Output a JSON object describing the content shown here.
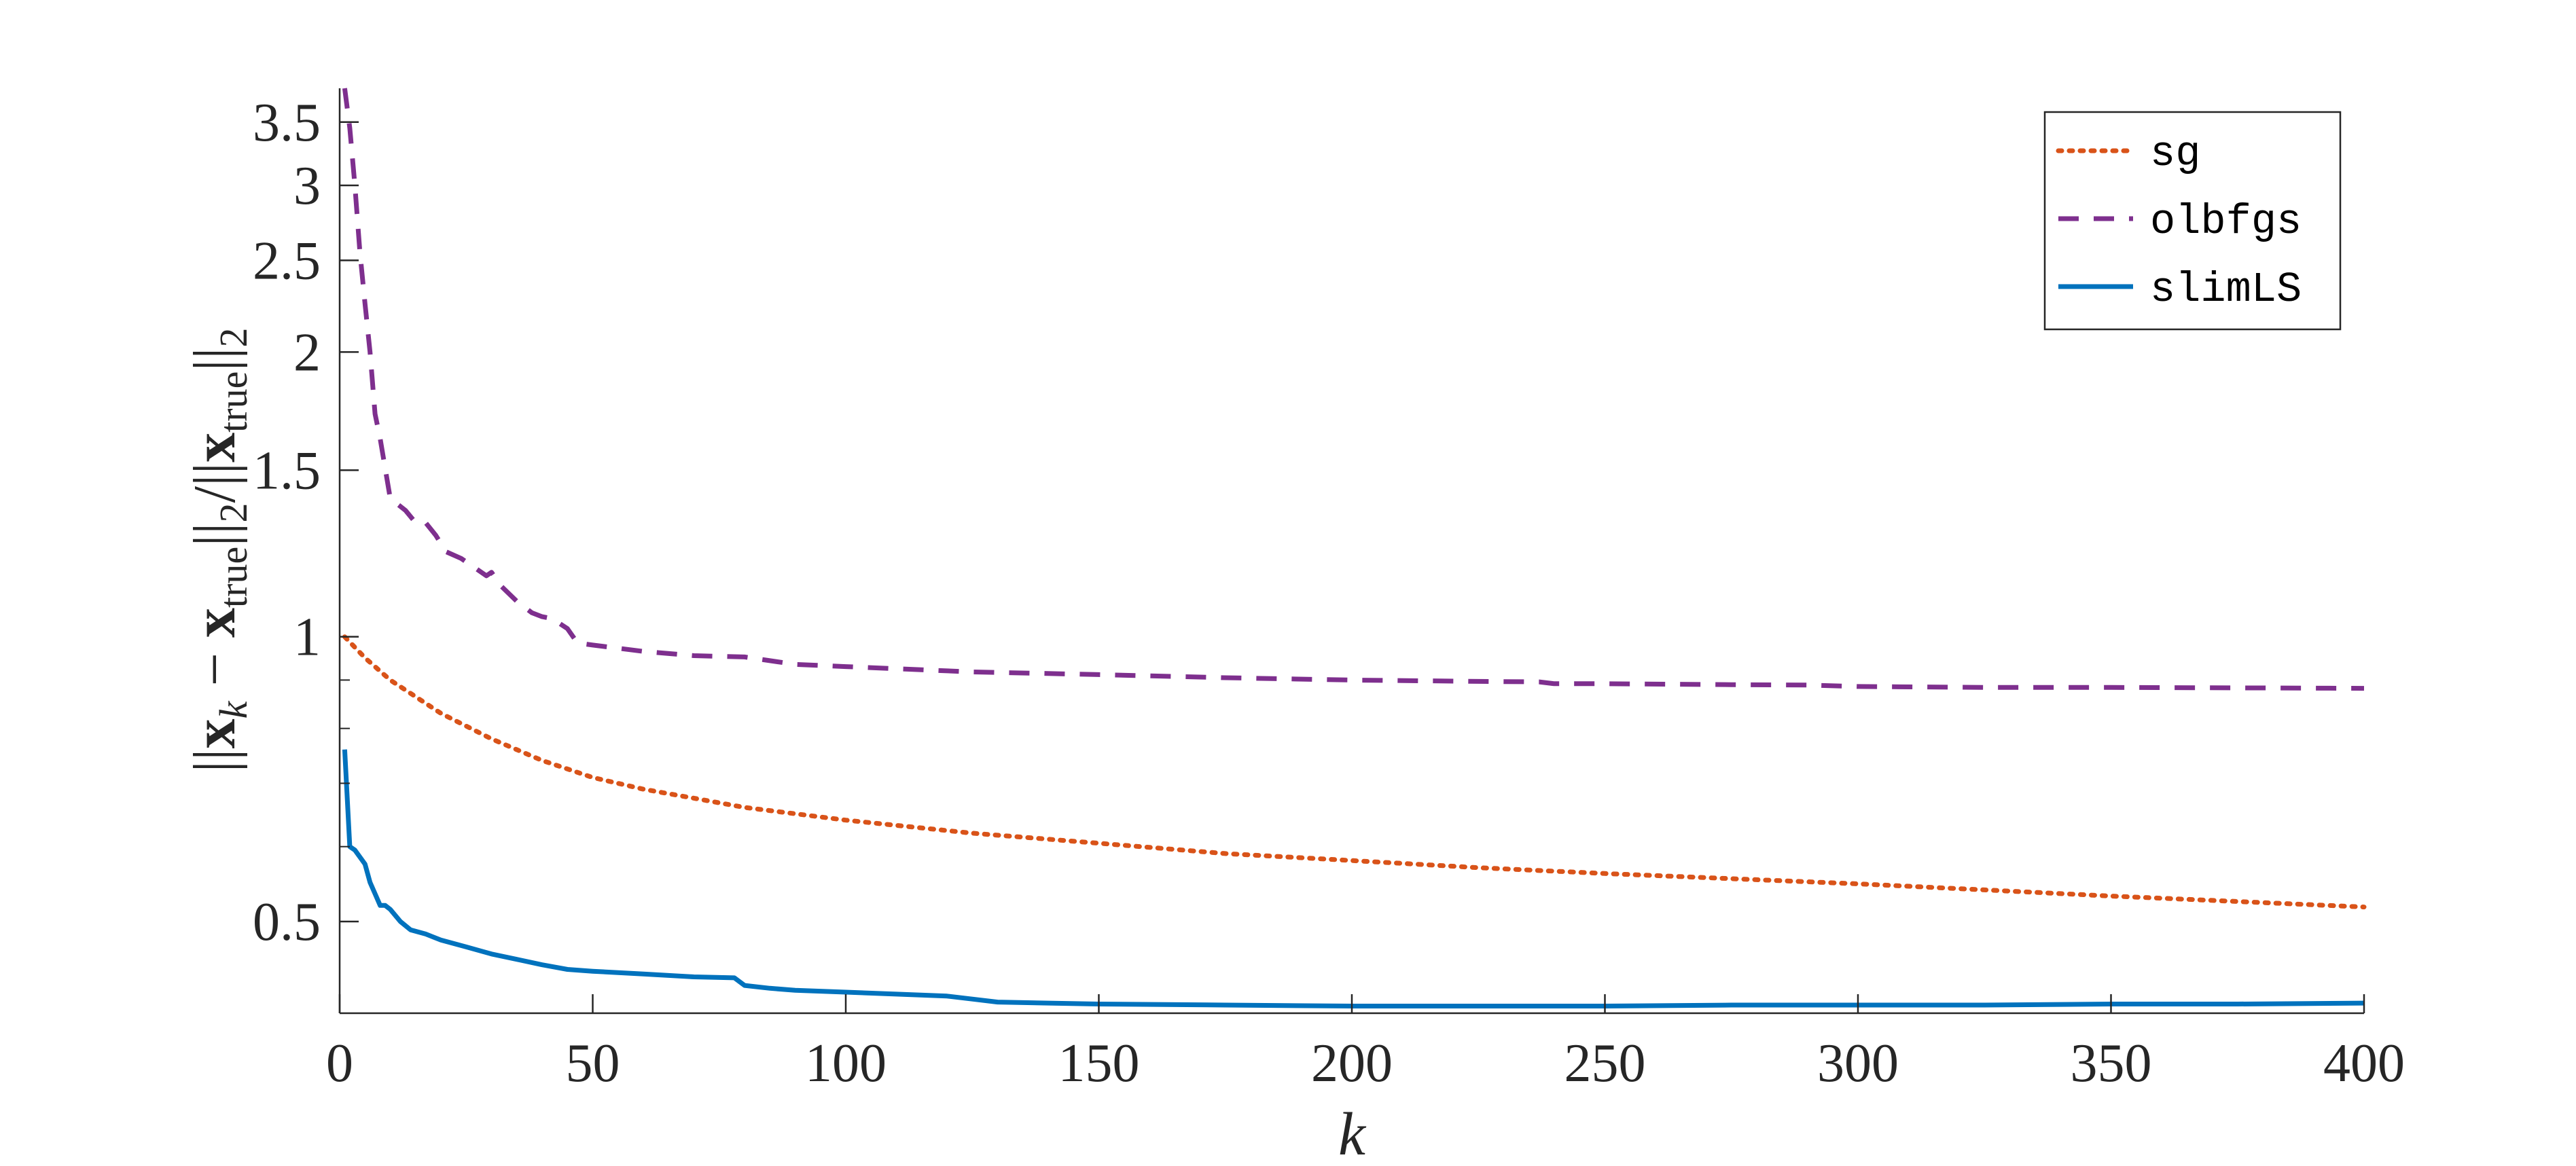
{
  "chart_data": {
    "type": "line",
    "xlabel": "k",
    "ylabel": {
      "norm_open": "||",
      "x_bold": "x",
      "x_sub": "k",
      "minus": " − ",
      "true_bold": "x",
      "true_sub": "true",
      "norm_close_1": "||",
      "two_1": "2",
      "slash": "/||",
      "denom_bold": "x",
      "denom_sub": "true",
      "norm_close_2": "||",
      "two_2": "2"
    },
    "xlim": [
      0,
      400
    ],
    "ylim": [
      0.4,
      3.8
    ],
    "yscale": "log",
    "xticks": [
      0,
      50,
      100,
      150,
      200,
      250,
      300,
      350,
      400
    ],
    "yticks": [
      0.5,
      1,
      1.5,
      2,
      2.5,
      3,
      3.5
    ],
    "ytick_labels": [
      "0.5",
      "1",
      "1.5",
      "2",
      "2.5",
      "3",
      "3.5"
    ],
    "yminor_ticks": [
      0.6,
      0.7,
      0.8,
      0.9
    ],
    "grid": false,
    "legend_position": "top-right",
    "series": [
      {
        "name": "sg",
        "style": "dotted",
        "color": "#D95319",
        "x": [
          1,
          5,
          10,
          20,
          30,
          40,
          50,
          60,
          70,
          80,
          90,
          100,
          125,
          150,
          175,
          200,
          225,
          250,
          275,
          300,
          325,
          350,
          375,
          400
        ],
        "y": [
          1.0,
          0.95,
          0.9,
          0.83,
          0.78,
          0.74,
          0.71,
          0.69,
          0.675,
          0.66,
          0.65,
          0.64,
          0.62,
          0.605,
          0.59,
          0.58,
          0.57,
          0.562,
          0.555,
          0.548,
          0.54,
          0.532,
          0.525,
          0.518
        ]
      },
      {
        "name": "olbfgs",
        "style": "dashed",
        "color": "#7E2F8E",
        "x": [
          1,
          2,
          3,
          4,
          5,
          6,
          7,
          8,
          10,
          13,
          15,
          17,
          19,
          21,
          24,
          27,
          29,
          30,
          32,
          35,
          38,
          40,
          42,
          45,
          47,
          50,
          60,
          70,
          80,
          90,
          100,
          125,
          150,
          175,
          200,
          225,
          237,
          240,
          250,
          275,
          290,
          300,
          325,
          350,
          375,
          400
        ],
        "y": [
          3.8,
          3.45,
          3.0,
          2.55,
          2.25,
          2.0,
          1.72,
          1.62,
          1.4,
          1.36,
          1.32,
          1.32,
          1.28,
          1.23,
          1.21,
          1.18,
          1.16,
          1.17,
          1.13,
          1.09,
          1.06,
          1.05,
          1.045,
          1.02,
          0.985,
          0.98,
          0.965,
          0.955,
          0.952,
          0.935,
          0.93,
          0.918,
          0.912,
          0.905,
          0.9,
          0.897,
          0.896,
          0.892,
          0.892,
          0.89,
          0.889,
          0.886,
          0.884,
          0.884,
          0.883,
          0.882
        ]
      },
      {
        "name": "slimLS",
        "style": "solid",
        "color": "#0072BD",
        "x": [
          1,
          2,
          3,
          5,
          6,
          7,
          8,
          9,
          10,
          12,
          14,
          17,
          20,
          25,
          30,
          35,
          40,
          45,
          50,
          60,
          70,
          78,
          80,
          85,
          90,
          100,
          110,
          120,
          125,
          130,
          140,
          150,
          175,
          200,
          225,
          250,
          275,
          300,
          325,
          350,
          375,
          400
        ],
        "y": [
          0.76,
          0.6,
          0.595,
          0.575,
          0.55,
          0.535,
          0.52,
          0.52,
          0.515,
          0.5,
          0.49,
          0.485,
          0.478,
          0.47,
          0.462,
          0.456,
          0.45,
          0.445,
          0.443,
          0.44,
          0.437,
          0.436,
          0.428,
          0.425,
          0.423,
          0.421,
          0.419,
          0.417,
          0.414,
          0.411,
          0.41,
          0.409,
          0.408,
          0.407,
          0.407,
          0.407,
          0.408,
          0.408,
          0.408,
          0.409,
          0.409,
          0.41
        ]
      }
    ]
  }
}
